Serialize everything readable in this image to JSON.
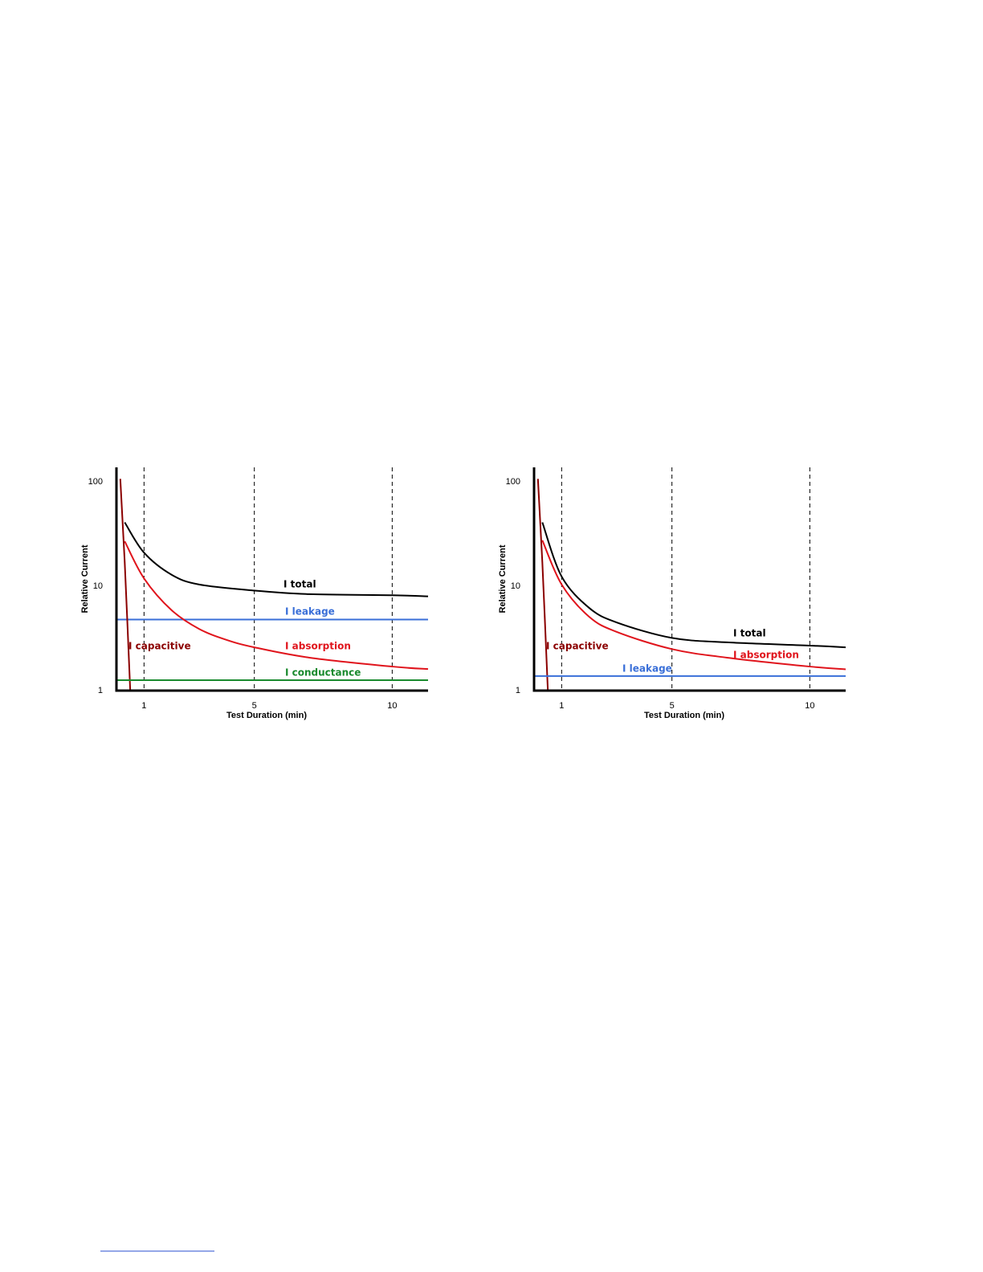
{
  "chart_data": [
    {
      "type": "line",
      "x_label": "Test Duration (min)",
      "y_label": "Relative Current",
      "xlim": [
        0,
        11.3
      ],
      "xticks": [
        1,
        5,
        10
      ],
      "xgrid": true,
      "ylim": [
        1,
        138
      ],
      "yticks": [
        1,
        10,
        100
      ],
      "log_y": true,
      "series": [
        {
          "name": "I total",
          "color": "#000000",
          "x": [
            0.3,
            1,
            2,
            3,
            5,
            7,
            10,
            11.3
          ],
          "values": [
            41,
            21,
            12.9,
            10.4,
            9.1,
            8.4,
            8.2,
            8.0
          ]
        },
        {
          "name": "I leakage",
          "color": "#3a6fd8",
          "x": [
            0,
            11.3
          ],
          "values": [
            4.8,
            4.8
          ]
        },
        {
          "name": "I absorption",
          "color": "#e0141c",
          "x": [
            0.3,
            1,
            2,
            3,
            4,
            5,
            7,
            10,
            11.3
          ],
          "values": [
            27,
            11.9,
            5.9,
            3.9,
            3.06,
            2.6,
            2.07,
            1.7,
            1.61
          ]
        },
        {
          "name": "I capacitive",
          "color": "#8b0000",
          "x": [
            0.14,
            0.3,
            0.5
          ],
          "values": [
            107,
            17,
            1
          ]
        },
        {
          "name": "I conductance",
          "color": "#1a8a2e",
          "x": [
            0,
            11.3
          ],
          "values": [
            1.26,
            1.26
          ]
        }
      ]
    },
    {
      "type": "line",
      "x_label": "Test Duration (min)",
      "y_label": "Relative Current",
      "xlim": [
        0,
        11.3
      ],
      "xticks": [
        1,
        5,
        10
      ],
      "xgrid": true,
      "ylim": [
        1,
        138
      ],
      "yticks": [
        1,
        10,
        100
      ],
      "log_y": true,
      "series": [
        {
          "name": "I total",
          "color": "#000000",
          "x": [
            0.3,
            1,
            2,
            3,
            5,
            7,
            10,
            11.3
          ],
          "values": [
            41,
            12.4,
            6.2,
            4.5,
            3.2,
            2.9,
            2.7,
            2.6
          ]
        },
        {
          "name": "I absorption",
          "color": "#e0141c",
          "x": [
            0.3,
            1,
            2,
            3,
            5,
            7,
            10,
            11.3
          ],
          "values": [
            27.6,
            10.4,
            5.1,
            3.65,
            2.5,
            2.07,
            1.7,
            1.6
          ]
        },
        {
          "name": "I capacitive",
          "color": "#8b0000",
          "x": [
            0.14,
            0.3,
            0.5
          ],
          "values": [
            107,
            17,
            1
          ]
        },
        {
          "name": "I leakage",
          "color": "#3a6fd8",
          "x": [
            0,
            11.3
          ],
          "values": [
            1.38,
            1.38
          ]
        }
      ]
    }
  ]
}
